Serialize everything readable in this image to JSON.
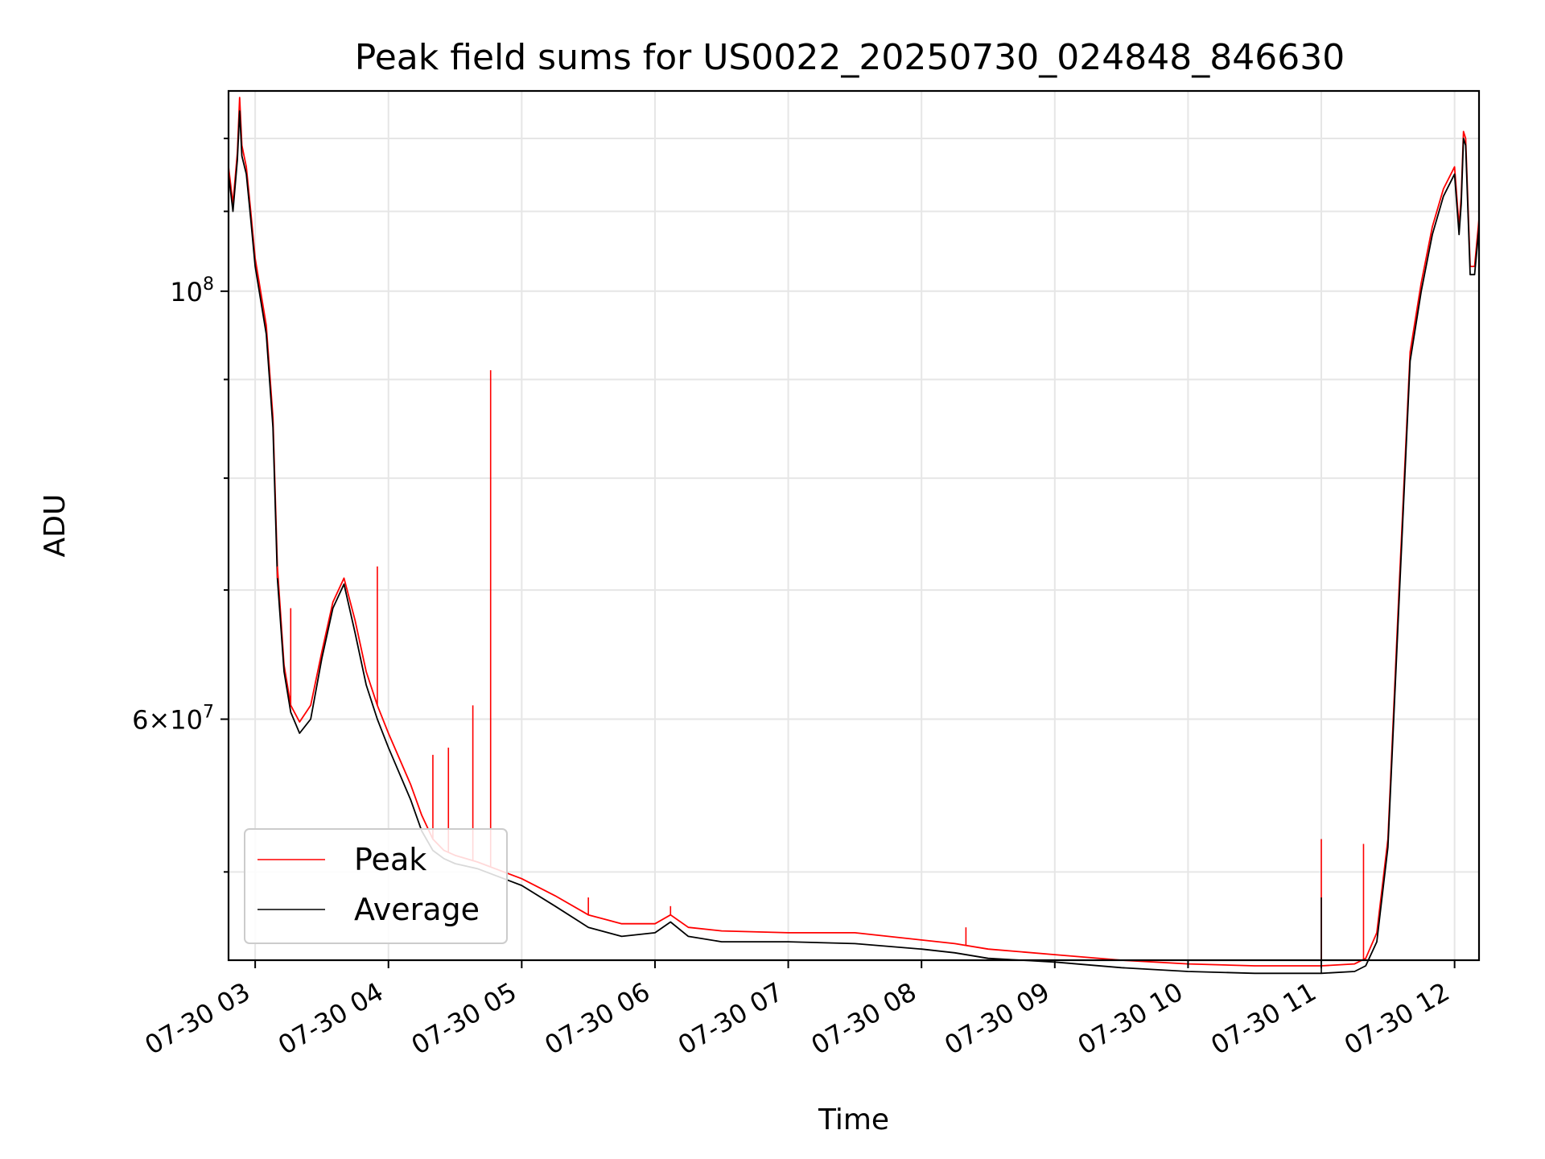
{
  "chart_data": {
    "type": "line",
    "title": "Peak field sums for US0022_20250730_024848_846630",
    "xlabel": "Time",
    "ylabel": "ADU",
    "x_ticks": [
      "07-30 03",
      "07-30 04",
      "07-30 05",
      "07-30 06",
      "07-30 07",
      "07-30 08",
      "07-30 09",
      "07-30 10",
      "07-30 11",
      "07-30 12"
    ],
    "y_ticks": [
      {
        "value": 100000000,
        "base": "10",
        "exp": "8"
      },
      {
        "value": 60000000,
        "prefix": "6×",
        "base": "10",
        "exp": "7"
      }
    ],
    "y_scale": "log",
    "xlim": [
      "2025-07-30 02:48",
      "2025-07-30 12:11"
    ],
    "ylim": [
      45000000,
      127000000
    ],
    "grid": true,
    "legend_position": "lower-left",
    "colors": {
      "Peak": "#ff0000",
      "Average": "#000000"
    },
    "series": [
      {
        "name": "Peak",
        "x": [
          "2025-07-30 02:48",
          "2025-07-30 02:50",
          "2025-07-30 02:52",
          "2025-07-30 02:53",
          "2025-07-30 02:54",
          "2025-07-30 02:56",
          "2025-07-30 02:58",
          "2025-07-30 03:00",
          "2025-07-30 03:05",
          "2025-07-30 03:08",
          "2025-07-30 03:10",
          "2025-07-30 03:13",
          "2025-07-30 03:16",
          "2025-07-30 03:20",
          "2025-07-30 03:25",
          "2025-07-30 03:30",
          "2025-07-30 03:35",
          "2025-07-30 03:40",
          "2025-07-30 03:45",
          "2025-07-30 03:50",
          "2025-07-30 03:55",
          "2025-07-30 04:00",
          "2025-07-30 04:10",
          "2025-07-30 04:15",
          "2025-07-30 04:20",
          "2025-07-30 04:25",
          "2025-07-30 04:30",
          "2025-07-30 04:40",
          "2025-07-30 05:00",
          "2025-07-30 05:15",
          "2025-07-30 05:30",
          "2025-07-30 05:45",
          "2025-07-30 06:00",
          "2025-07-30 06:07",
          "2025-07-30 06:15",
          "2025-07-30 06:30",
          "2025-07-30 07:00",
          "2025-07-30 07:30",
          "2025-07-30 08:00",
          "2025-07-30 08:15",
          "2025-07-30 08:30",
          "2025-07-30 09:00",
          "2025-07-30 09:30",
          "2025-07-30 10:00",
          "2025-07-30 10:30",
          "2025-07-30 11:00",
          "2025-07-30 11:15",
          "2025-07-30 11:20",
          "2025-07-30 11:25",
          "2025-07-30 11:30",
          "2025-07-30 11:35",
          "2025-07-30 11:40",
          "2025-07-30 11:45",
          "2025-07-30 11:50",
          "2025-07-30 11:55",
          "2025-07-30 12:00",
          "2025-07-30 12:02",
          "2025-07-30 12:03",
          "2025-07-30 12:04",
          "2025-07-30 12:05",
          "2025-07-30 12:07",
          "2025-07-30 12:09",
          "2025-07-30 12:11"
        ],
        "values": [
          116000000,
          111000000,
          118000000,
          126000000,
          119000000,
          116000000,
          110000000,
          104000000,
          96000000,
          86000000,
          72000000,
          64000000,
          61000000,
          59800000,
          61000000,
          65000000,
          69000000,
          71000000,
          67500000,
          63500000,
          61000000,
          59000000,
          55500000,
          53500000,
          52000000,
          51300000,
          51000000,
          50600000,
          49600000,
          48600000,
          47500000,
          47000000,
          47000000,
          47500000,
          46800000,
          46600000,
          46500000,
          46500000,
          46100000,
          45900000,
          45600000,
          45300000,
          45000000,
          44800000,
          44700000,
          44700000,
          44800000,
          45100000,
          46500000,
          52000000,
          70000000,
          93000000,
          101000000,
          108000000,
          113000000,
          116000000,
          108000000,
          112000000,
          121000000,
          120000000,
          103000000,
          103000000,
          109000000
        ]
      },
      {
        "name": "Average",
        "x": [
          "2025-07-30 02:48",
          "2025-07-30 02:50",
          "2025-07-30 02:52",
          "2025-07-30 02:53",
          "2025-07-30 02:54",
          "2025-07-30 02:56",
          "2025-07-30 02:58",
          "2025-07-30 03:00",
          "2025-07-30 03:05",
          "2025-07-30 03:08",
          "2025-07-30 03:10",
          "2025-07-30 03:13",
          "2025-07-30 03:16",
          "2025-07-30 03:20",
          "2025-07-30 03:25",
          "2025-07-30 03:30",
          "2025-07-30 03:35",
          "2025-07-30 03:40",
          "2025-07-30 03:45",
          "2025-07-30 03:50",
          "2025-07-30 03:55",
          "2025-07-30 04:00",
          "2025-07-30 04:10",
          "2025-07-30 04:15",
          "2025-07-30 04:20",
          "2025-07-30 04:25",
          "2025-07-30 04:30",
          "2025-07-30 04:40",
          "2025-07-30 05:00",
          "2025-07-30 05:15",
          "2025-07-30 05:30",
          "2025-07-30 05:45",
          "2025-07-30 06:00",
          "2025-07-30 06:07",
          "2025-07-30 06:15",
          "2025-07-30 06:30",
          "2025-07-30 07:00",
          "2025-07-30 07:30",
          "2025-07-30 08:00",
          "2025-07-30 08:15",
          "2025-07-30 08:30",
          "2025-07-30 09:00",
          "2025-07-30 09:30",
          "2025-07-30 10:00",
          "2025-07-30 10:30",
          "2025-07-30 11:00",
          "2025-07-30 11:15",
          "2025-07-30 11:20",
          "2025-07-30 11:25",
          "2025-07-30 11:30",
          "2025-07-30 11:35",
          "2025-07-30 11:40",
          "2025-07-30 11:45",
          "2025-07-30 11:50",
          "2025-07-30 11:55",
          "2025-07-30 12:00",
          "2025-07-30 12:02",
          "2025-07-30 12:03",
          "2025-07-30 12:04",
          "2025-07-30 12:05",
          "2025-07-30 12:07",
          "2025-07-30 12:09",
          "2025-07-30 12:11"
        ],
        "values": [
          115000000,
          110000000,
          117000000,
          124000000,
          117500000,
          115000000,
          109000000,
          103000000,
          95000000,
          85000000,
          71000000,
          63500000,
          60500000,
          59000000,
          60000000,
          64500000,
          68500000,
          70500000,
          66500000,
          62500000,
          60000000,
          58000000,
          54500000,
          52500000,
          51300000,
          50800000,
          50500000,
          50200000,
          49200000,
          48000000,
          46800000,
          46300000,
          46500000,
          47100000,
          46300000,
          46000000,
          46000000,
          45900000,
          45600000,
          45400000,
          45100000,
          44900000,
          44600000,
          44400000,
          44300000,
          44300000,
          44400000,
          44700000,
          46000000,
          51500000,
          69000000,
          92000000,
          100000000,
          107000000,
          112000000,
          115000000,
          107000000,
          111000000,
          120000000,
          119000000,
          102000000,
          102000000,
          108000000
        ]
      }
    ],
    "spikes": [
      {
        "series": "Peak",
        "x": "2025-07-30 03:10",
        "value": 71000000
      },
      {
        "series": "Peak",
        "x": "2025-07-30 03:16",
        "value": 68500000
      },
      {
        "series": "Peak",
        "x": "2025-07-30 03:55",
        "value": 72000000
      },
      {
        "series": "Peak",
        "x": "2025-07-30 04:20",
        "value": 57500000
      },
      {
        "series": "Peak",
        "x": "2025-07-30 04:27",
        "value": 58000000
      },
      {
        "series": "Peak",
        "x": "2025-07-30 04:38",
        "value": 61000000
      },
      {
        "series": "Peak",
        "x": "2025-07-30 04:46",
        "value": 91000000
      },
      {
        "series": "Peak",
        "x": "2025-07-30 05:30",
        "value": 48500000
      },
      {
        "series": "Peak",
        "x": "2025-07-30 06:07",
        "value": 48000000
      },
      {
        "series": "Peak",
        "x": "2025-07-30 08:20",
        "value": 46800000
      },
      {
        "series": "Peak",
        "x": "2025-07-30 11:00",
        "value": 52000000
      },
      {
        "series": "Average",
        "x": "2025-07-30 11:00",
        "value": 48500000
      },
      {
        "series": "Peak",
        "x": "2025-07-30 11:19",
        "value": 51700000
      }
    ]
  }
}
